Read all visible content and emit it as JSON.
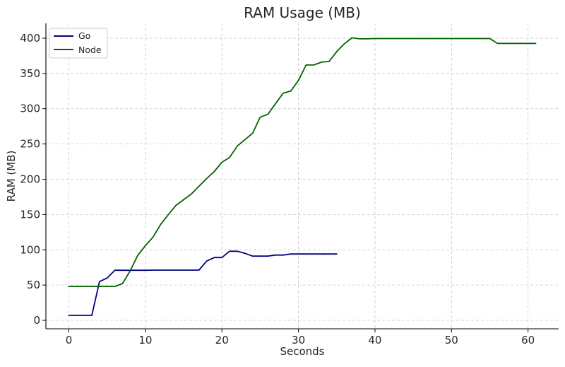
{
  "chart_data": {
    "type": "line",
    "title": "RAM Usage (MB)",
    "xlabel": "Seconds",
    "ylabel": "RAM (MB)",
    "xlim": [
      -3,
      64
    ],
    "ylim": [
      -12,
      421
    ],
    "xticks": [
      0,
      10,
      20,
      30,
      40,
      50,
      60
    ],
    "yticks": [
      0,
      50,
      100,
      150,
      200,
      250,
      300,
      350,
      400
    ],
    "grid": true,
    "legend_position": "top-left",
    "series": [
      {
        "name": "Go",
        "color": "#000080",
        "x": [
          0,
          1,
          2,
          3,
          4,
          5,
          6,
          7,
          8,
          9,
          10,
          11,
          12,
          13,
          14,
          15,
          16,
          17,
          18,
          19,
          20,
          21,
          22,
          23,
          24,
          25,
          26,
          27,
          28,
          29,
          30,
          31,
          32,
          33,
          34,
          35
        ],
        "y": [
          7,
          7,
          7,
          7,
          55,
          60,
          71,
          71,
          71,
          71,
          71,
          71.2,
          71.2,
          71.2,
          71.2,
          71.2,
          71.2,
          71.2,
          84,
          89,
          89,
          98,
          98,
          95,
          91,
          91,
          91,
          92.5,
          92.5,
          94,
          94,
          94,
          94,
          94,
          94,
          94
        ]
      },
      {
        "name": "Node",
        "color": "#006400",
        "x": [
          0,
          1,
          2,
          3,
          4,
          5,
          6,
          7,
          8,
          9,
          10,
          11,
          12,
          13,
          14,
          15,
          16,
          17,
          18,
          19,
          20,
          21,
          22,
          23,
          24,
          25,
          26,
          27,
          28,
          29,
          30,
          31,
          32,
          33,
          34,
          35,
          36,
          37,
          38,
          39,
          40,
          41,
          42,
          43,
          44,
          45,
          46,
          47,
          48,
          49,
          50,
          51,
          52,
          53,
          54,
          55,
          56,
          57,
          58,
          59,
          60,
          61
        ],
        "y": [
          48,
          48,
          48,
          48,
          48,
          48,
          48,
          52,
          70,
          92,
          106,
          118,
          136,
          150,
          163,
          171,
          179,
          190,
          201,
          211,
          224,
          231,
          247,
          256,
          265,
          288,
          292,
          307,
          322,
          325,
          340,
          362,
          362,
          366,
          367,
          381,
          392,
          400.5,
          399,
          399,
          399.5,
          399.5,
          399.5,
          399.5,
          399.5,
          399.5,
          399.5,
          399.5,
          399.5,
          399.5,
          399.5,
          399.5,
          399.5,
          399.5,
          399.5,
          399.5,
          392.5,
          392.5,
          392.5,
          392.5,
          392.5,
          392.5
        ]
      }
    ]
  }
}
